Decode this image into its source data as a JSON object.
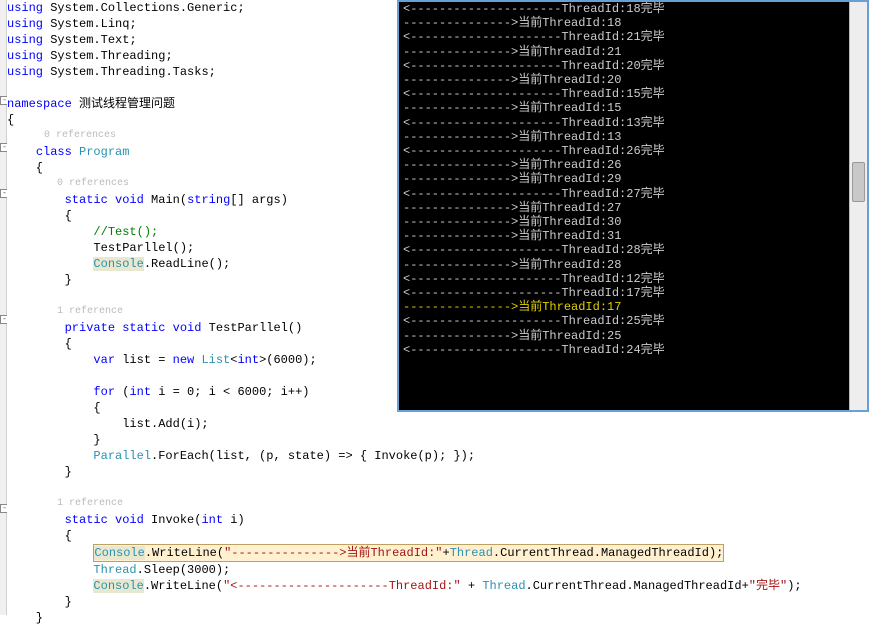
{
  "code": {
    "using": [
      "System.Collections.Generic",
      "System.Linq",
      "System.Text",
      "System.Threading",
      "System.Threading.Tasks"
    ],
    "namespace": "测试线程管理问题",
    "refs0": "0 references",
    "class_kw": "class",
    "class_name": "Program",
    "refs1": "0 references",
    "main_sig_static": "static",
    "main_sig_void": "void",
    "main_sig_name": "Main",
    "main_sig_string": "string",
    "main_sig_args": "[] args",
    "main_comment": "//Test();",
    "main_l1": "TestParllel();",
    "main_console": "Console",
    "main_readline": ".ReadLine();",
    "refs2": "1 reference",
    "tp_private": "private",
    "tp_static": "static",
    "tp_void": "void",
    "tp_name": "TestParllel()",
    "var_kw": "var",
    "list_assign": " list = ",
    "new_kw": "new",
    "list_type": "List",
    "int_kw": "int",
    "list_ctor": ">(6000);",
    "for_kw": "for",
    "for_open": " (",
    "for_int": "int",
    "for_body": " i = 0; i < 6000; i++)",
    "list_add": "list.Add(i);",
    "parallel_type": "Parallel",
    "parallel_call": ".ForEach(list, (p, state) => { Invoke(p); });",
    "refs3": "1 reference",
    "inv_static": "static",
    "inv_void": "void",
    "inv_name": "Invoke",
    "inv_int": "int",
    "inv_param": " i)",
    "cw1_console": "Console",
    "cw1_write": ".WriteLine(",
    "cw1_str": "\"--------------->当前ThreadId:\"",
    "cw1_plus": "+",
    "cw1_thread": "Thread",
    "cw1_rest": ".CurrentThread.ManagedThreadId);",
    "sleep_thread": "Thread",
    "sleep_call": ".Sleep(3000);",
    "cw2_console": "Console",
    "cw2_write": ".WriteLine(",
    "cw2_str": "\"<---------------------ThreadId:\"",
    "cw2_plus": " + ",
    "cw2_thread": "Thread",
    "cw2_mid": ".CurrentThread.ManagedThreadId+",
    "cw2_end": "\"完毕\"",
    "cw2_close": ");"
  },
  "console": {
    "lines": [
      {
        "t": "<---------------------ThreadId:18完毕",
        "y": false
      },
      {
        "t": "--------------->当前ThreadId:18",
        "y": false
      },
      {
        "t": "<---------------------ThreadId:21完毕",
        "y": false
      },
      {
        "t": "--------------->当前ThreadId:21",
        "y": false
      },
      {
        "t": "<---------------------ThreadId:20完毕",
        "y": false
      },
      {
        "t": "--------------->当前ThreadId:20",
        "y": false
      },
      {
        "t": "<---------------------ThreadId:15完毕",
        "y": false
      },
      {
        "t": "--------------->当前ThreadId:15",
        "y": false
      },
      {
        "t": "<---------------------ThreadId:13完毕",
        "y": false
      },
      {
        "t": "--------------->当前ThreadId:13",
        "y": false
      },
      {
        "t": "<---------------------ThreadId:26完毕",
        "y": false
      },
      {
        "t": "--------------->当前ThreadId:26",
        "y": false
      },
      {
        "t": "--------------->当前ThreadId:29",
        "y": false
      },
      {
        "t": "<---------------------ThreadId:27完毕",
        "y": false
      },
      {
        "t": "--------------->当前ThreadId:27",
        "y": false
      },
      {
        "t": "--------------->当前ThreadId:30",
        "y": false
      },
      {
        "t": "--------------->当前ThreadId:31",
        "y": false
      },
      {
        "t": "<---------------------ThreadId:28完毕",
        "y": false
      },
      {
        "t": "--------------->当前ThreadId:28",
        "y": false
      },
      {
        "t": "<---------------------ThreadId:12完毕",
        "y": false
      },
      {
        "t": "<---------------------ThreadId:17完毕",
        "y": false
      },
      {
        "t": "--------------->当前ThreadId:17",
        "y": true
      },
      {
        "t": "<---------------------ThreadId:25完毕",
        "y": false
      },
      {
        "t": "--------------->当前ThreadId:25",
        "y": false
      },
      {
        "t": "<---------------------ThreadId:24完毕",
        "y": false
      }
    ],
    "title_bar_color": "#6a9fd6",
    "bg": "#000000",
    "fg": "#c0c0c0",
    "highlight_fg": "#e0d000"
  },
  "colors": {
    "keyword": "#0000ff",
    "type": "#2b91af",
    "string": "#a31515",
    "comment": "#008000",
    "reference_text": "#bbbbbb",
    "highlight_bg": "#fff0d0",
    "highlight_border": "#c0a060"
  }
}
